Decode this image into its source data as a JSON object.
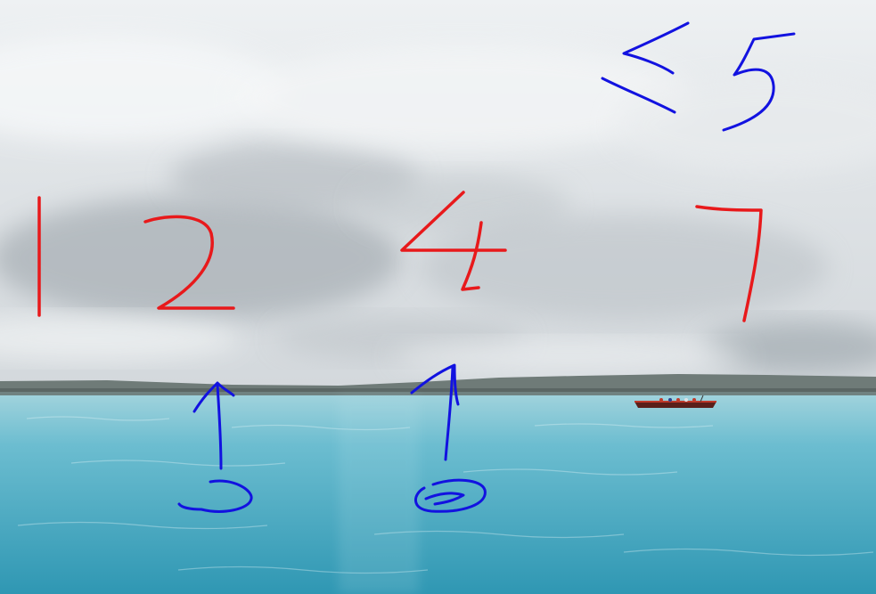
{
  "scene": {
    "description_free": true,
    "colors": {
      "sky_top": "#eef1f3",
      "sky_mid": "#d6dadd",
      "cloud_dark": "#a9b0b6",
      "cloud_light": "#f4f6f7",
      "hills": "#6f7b78",
      "hills_dark": "#56625f",
      "water_top": "#8fcad6",
      "water_mid": "#4fb0c6",
      "water_bottom": "#2f97b3",
      "boat_hull": "#5a1f1a",
      "boat_rim": "#c03a2b",
      "ink_red": "#e8191b",
      "ink_blue": "#1212e0"
    }
  },
  "annotations": {
    "red_digits": [
      "1",
      "2",
      "4",
      "7"
    ],
    "blue_marks": [
      "<5",
      "↑",
      "↑"
    ]
  }
}
